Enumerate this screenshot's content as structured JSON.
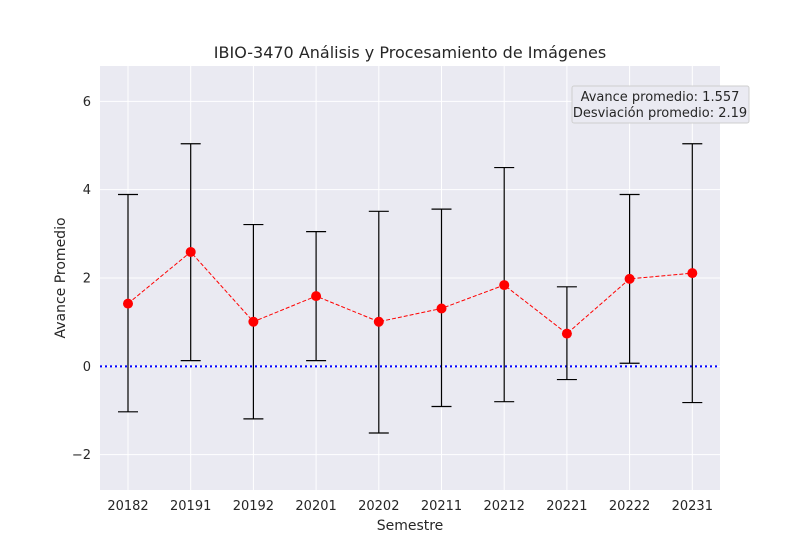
{
  "chart_data": {
    "type": "line",
    "title": "IBIO-3470 Análisis y Procesamiento de Imágenes",
    "xlabel": "Semestre",
    "ylabel": "Avance Promedio",
    "ylim": [
      -2.8,
      6.8
    ],
    "yticks": [
      -2,
      0,
      2,
      4,
      6
    ],
    "grid": true,
    "categories": [
      "20182",
      "20191",
      "20192",
      "20201",
      "20202",
      "20211",
      "20212",
      "20221",
      "20222",
      "20231"
    ],
    "series": [
      {
        "values": [
          1.42,
          2.59,
          1.01,
          1.59,
          1.01,
          1.31,
          1.84,
          0.74,
          1.98,
          2.11
        ],
        "error_low": [
          -1.03,
          0.13,
          -1.19,
          0.13,
          -1.51,
          -0.91,
          -0.8,
          -0.3,
          0.07,
          -0.82
        ],
        "error_high": [
          3.89,
          5.04,
          3.21,
          3.05,
          3.51,
          3.56,
          4.5,
          1.8,
          3.89,
          5.04
        ],
        "color": "#ff0000",
        "linestyle": "dashed",
        "marker": "circle"
      }
    ],
    "reference_line": {
      "y": 0,
      "color": "#0000ff",
      "linestyle": "dotted"
    },
    "annotation": {
      "lines": [
        "Avance promedio: 1.557",
        "Desviación promedio: 2.19"
      ],
      "placement": "top-right"
    }
  }
}
